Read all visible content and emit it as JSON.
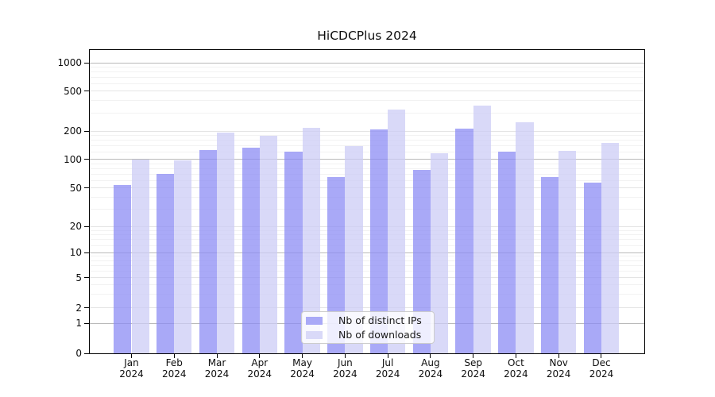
{
  "title": "HiCDCPlus 2024",
  "chart_data": {
    "type": "bar",
    "title": "HiCDCPlus 2024",
    "categories": [
      "Jan",
      "Feb",
      "Mar",
      "Apr",
      "May",
      "Jun",
      "Jul",
      "Aug",
      "Sep",
      "Oct",
      "Nov",
      "Dec"
    ],
    "category_year": "2024",
    "series": [
      {
        "name": "Nb of distinct IPs",
        "key": "distinct-ips",
        "color": "#a9a9f7",
        "values": [
          54,
          70,
          126,
          134,
          121,
          65,
          206,
          77,
          211,
          121,
          65,
          57
        ]
      },
      {
        "name": "Nb of downloads",
        "key": "downloads",
        "color": "#d9d9f8",
        "values": [
          100,
          97,
          192,
          177,
          215,
          137,
          327,
          117,
          357,
          246,
          123,
          150
        ]
      }
    ],
    "y_ticks": [
      0,
      1,
      2,
      5,
      10,
      20,
      50,
      100,
      200,
      500,
      1000
    ],
    "y_scale": "log-like (symlog, 0 on axis)",
    "ylim": [
      0,
      1500
    ],
    "grid": true,
    "legend_position": "inside-bottom-center"
  },
  "colors": {
    "background": "#ffffff",
    "axis": "#000000",
    "major_grid": "#b9b9b9",
    "labeled_grid": "#e4e4e4",
    "minor_grid": "#f2f2f2",
    "text": "#0d0d0d",
    "ips_bar": "#a9a9f7",
    "downloads_bar": "#d9d9f8"
  }
}
